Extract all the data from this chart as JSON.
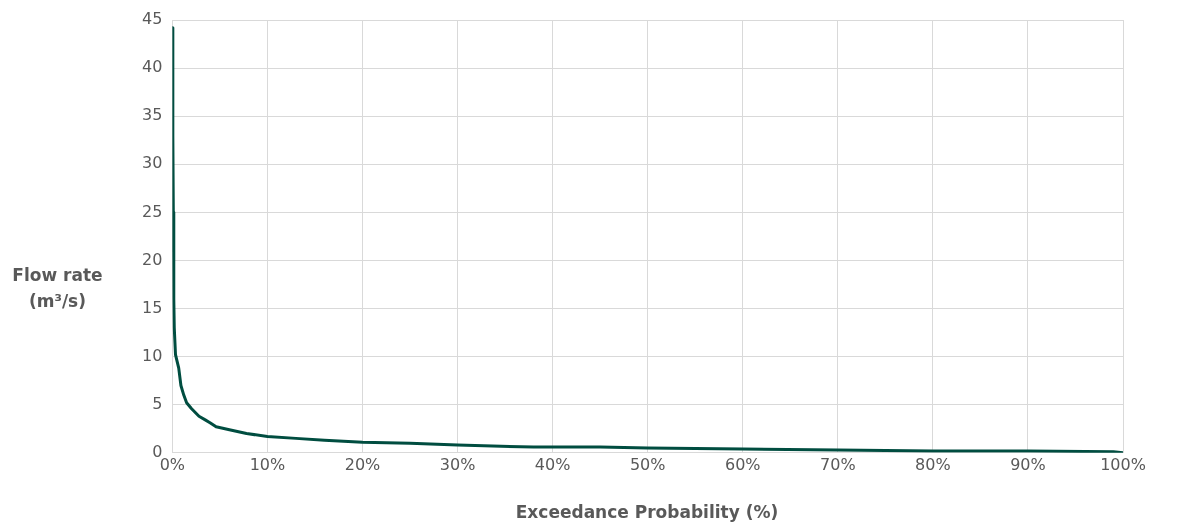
{
  "chart_data": {
    "type": "line",
    "xlabel": "Exceedance Probability (%)",
    "ylabel": "Flow rate (m³/s)",
    "series": [
      {
        "color": "#004d40",
        "x": [
          0,
          0.05,
          0.1,
          0.15,
          0.2,
          0.33,
          0.5,
          0.67,
          0.9,
          1.2,
          1.5,
          2,
          2.8,
          3.5,
          4,
          4.6,
          6,
          7.8,
          10,
          13,
          16,
          20,
          25,
          30,
          38,
          45,
          50,
          60,
          70,
          80,
          90,
          99,
          100
        ],
        "values": [
          44.2,
          33,
          25,
          16,
          13,
          10.2,
          9.5,
          8.8,
          7,
          6,
          5.2,
          4.6,
          3.8,
          3.4,
          3.1,
          2.7,
          2.4,
          2.0,
          1.7,
          1.5,
          1.3,
          1.1,
          1.0,
          0.8,
          0.6,
          0.6,
          0.5,
          0.4,
          0.3,
          0.2,
          0.2,
          0.1,
          0
        ]
      }
    ],
    "xlim": [
      0,
      100
    ],
    "xticks": [
      {
        "value": 0,
        "label": "0%"
      },
      {
        "value": 10,
        "label": "10%"
      },
      {
        "value": 20,
        "label": "20%"
      },
      {
        "value": 30,
        "label": "30%"
      },
      {
        "value": 40,
        "label": "40%"
      },
      {
        "value": 50,
        "label": "50%"
      },
      {
        "value": 60,
        "label": "60%"
      },
      {
        "value": 70,
        "label": "70%"
      },
      {
        "value": 80,
        "label": "80%"
      },
      {
        "value": 90,
        "label": "90%"
      },
      {
        "value": 100,
        "label": "100%"
      }
    ],
    "ylim": [
      0,
      45
    ],
    "yticks": [
      0,
      5,
      10,
      15,
      20,
      25,
      30,
      35,
      40,
      45
    ],
    "grid": true,
    "marker": "none",
    "line_style": "solid",
    "legend": false
  }
}
